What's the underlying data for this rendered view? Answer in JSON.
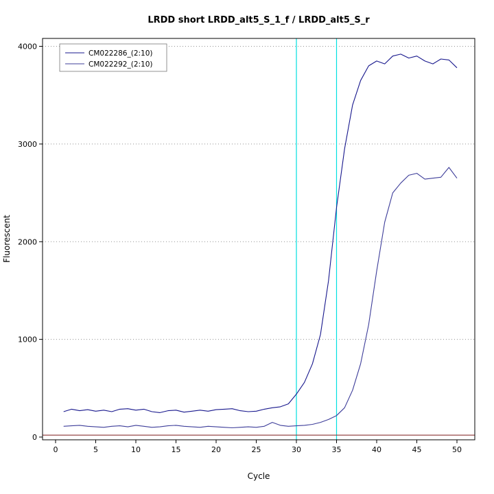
{
  "chart_data": {
    "type": "line",
    "title": "LRDD short LRDD_alt5_S_1_f / LRDD_alt5_S_r",
    "xlabel": "Cycle",
    "ylabel": "Fluorescent",
    "xlim": [
      -1.6,
      52.2
    ],
    "ylim": [
      -30,
      4080
    ],
    "x_ticks": [
      0,
      5,
      10,
      15,
      20,
      25,
      30,
      35,
      40,
      45,
      50
    ],
    "y_ticks": [
      0,
      1000,
      2000,
      3000,
      4000
    ],
    "grid": "dotted horizontal at y ticks",
    "legend_position": "top-left",
    "x_start_cycle": 1,
    "series": [
      {
        "name": "CM022286_(2:10)",
        "color": "#16168c",
        "values": [
          260,
          285,
          270,
          280,
          265,
          275,
          260,
          285,
          290,
          275,
          285,
          260,
          250,
          270,
          275,
          255,
          265,
          275,
          265,
          280,
          285,
          290,
          270,
          260,
          265,
          285,
          300,
          310,
          340,
          440,
          560,
          750,
          1050,
          1600,
          2350,
          2950,
          3400,
          3650,
          3800,
          3850,
          3820,
          3900,
          3920,
          3880,
          3900,
          3850,
          3820,
          3870,
          3860,
          3780
        ]
      },
      {
        "name": "CM022292_(2:10)",
        "color": "#3c3c99",
        "values": [
          110,
          115,
          120,
          110,
          105,
          100,
          110,
          115,
          105,
          120,
          110,
          100,
          105,
          115,
          120,
          110,
          105,
          100,
          110,
          105,
          100,
          95,
          100,
          105,
          100,
          110,
          150,
          120,
          110,
          115,
          120,
          130,
          150,
          180,
          220,
          300,
          480,
          750,
          1150,
          1700,
          2200,
          2500,
          2600,
          2680,
          2700,
          2640,
          2650,
          2660,
          2760,
          2650
        ]
      }
    ],
    "vlines": [
      {
        "x": 30,
        "color": "#00e0e0"
      },
      {
        "x": 35,
        "color": "#00e0e0"
      }
    ],
    "hlines": [
      {
        "y": 20,
        "color": "#8a3333"
      }
    ]
  }
}
